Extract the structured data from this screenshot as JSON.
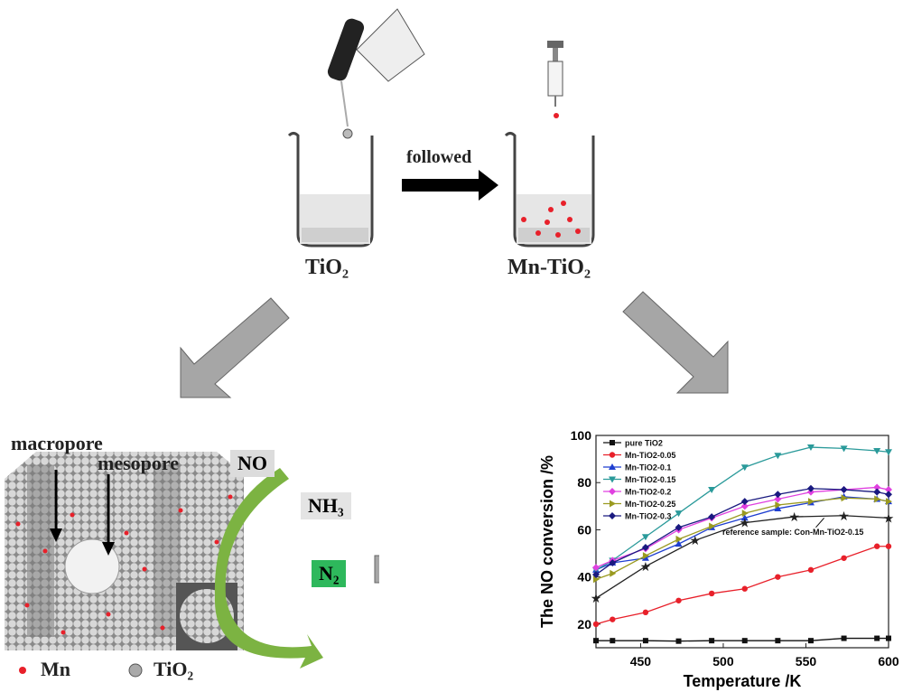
{
  "labels": {
    "followed": "followed",
    "tio2": "TiO₂",
    "mn_tio2": "Mn-TiO₂",
    "macropore": "macropore",
    "mesopore": "mesopore",
    "no": "NO",
    "nh3": "NH₃",
    "n2": "N₂",
    "legend_mn": "Mn",
    "legend_tio2": "TiO₂"
  },
  "colors": {
    "mn": "#e8202a",
    "arrow_gray": "#a6a6a6",
    "green": "#6ab04c",
    "n2_box": "#2eb85c"
  },
  "chart_data": {
    "type": "line",
    "xlabel": "Temperature /K",
    "ylabel": "The NO conversion /%",
    "xlim": [
      423,
      600
    ],
    "ylim": [
      10,
      100
    ],
    "xticks": [
      450,
      500,
      550,
      600
    ],
    "yticks": [
      20,
      40,
      60,
      80,
      100
    ],
    "legend": "top-left",
    "x": [
      423,
      433,
      453,
      473,
      493,
      513,
      533,
      553,
      573,
      593,
      600
    ],
    "series": [
      {
        "name": "pure TiO2",
        "color": "#111111",
        "marker": "square",
        "values": [
          13,
          13,
          13,
          12.8,
          13,
          13,
          13,
          13,
          14,
          14,
          14
        ]
      },
      {
        "name": "Mn-TiO2-0.05",
        "color": "#e8202a",
        "marker": "circle",
        "values": [
          20,
          22,
          25,
          30,
          33,
          35,
          40,
          43,
          48,
          53,
          53
        ]
      },
      {
        "name": "Mn-TiO2-0.1",
        "color": "#1f3fd0",
        "marker": "triangle-up",
        "values": [
          43,
          46,
          48,
          54,
          61,
          65,
          69,
          71.5,
          74,
          73,
          72
        ]
      },
      {
        "name": "Mn-TiO2-0.15",
        "color": "#2a9a9a",
        "marker": "triangle-down",
        "values": [
          43,
          47,
          57,
          67,
          77,
          86.5,
          91.5,
          95,
          94.5,
          93.5,
          93
        ]
      },
      {
        "name": "Mn-TiO2-0.2",
        "color": "#e040e0",
        "marker": "diamond",
        "values": [
          44,
          47,
          52,
          60,
          65,
          70,
          73,
          76,
          77,
          78,
          77
        ]
      },
      {
        "name": "Mn-TiO2-0.25",
        "color": "#9a9a20",
        "marker": "triangle-right",
        "values": [
          39,
          41.5,
          49,
          56,
          61.5,
          67,
          70.5,
          72,
          73.5,
          73,
          72
        ]
      },
      {
        "name": "Mn-TiO2-0.3",
        "color": "#1a1a80",
        "marker": "diamond",
        "values": [
          41,
          46,
          52.5,
          61,
          65.5,
          72,
          75,
          77.5,
          77,
          76,
          75
        ]
      }
    ],
    "reference": {
      "name": "reference sample: Con-Mn-TiO2-0.15",
      "color": "#222222",
      "marker": "star",
      "x": [
        423,
        453,
        483,
        513,
        543,
        573,
        600
      ],
      "values": [
        31,
        44.5,
        55.5,
        63,
        65.5,
        66,
        65
      ]
    }
  }
}
